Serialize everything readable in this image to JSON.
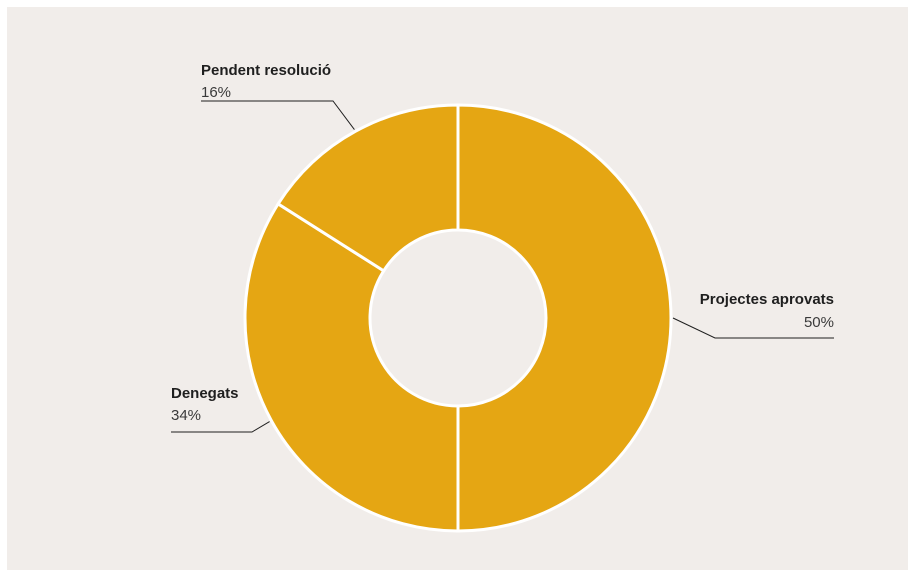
{
  "chart_data": {
    "type": "pie",
    "donut": true,
    "slices": [
      {
        "label": "Projectes aprovats",
        "value": 50,
        "value_label": "50%"
      },
      {
        "label": "Denegats",
        "value": 34,
        "value_label": "34%"
      },
      {
        "label": "Pendent resolució",
        "value": 16,
        "value_label": "16%"
      }
    ],
    "start": "top",
    "direction": "clockwise",
    "slice_color": "#e5a613",
    "separator_color": "#ffffff",
    "background_color": "#f1edea",
    "legend": "none",
    "labels_placement": "outside-with-leader-lines"
  }
}
